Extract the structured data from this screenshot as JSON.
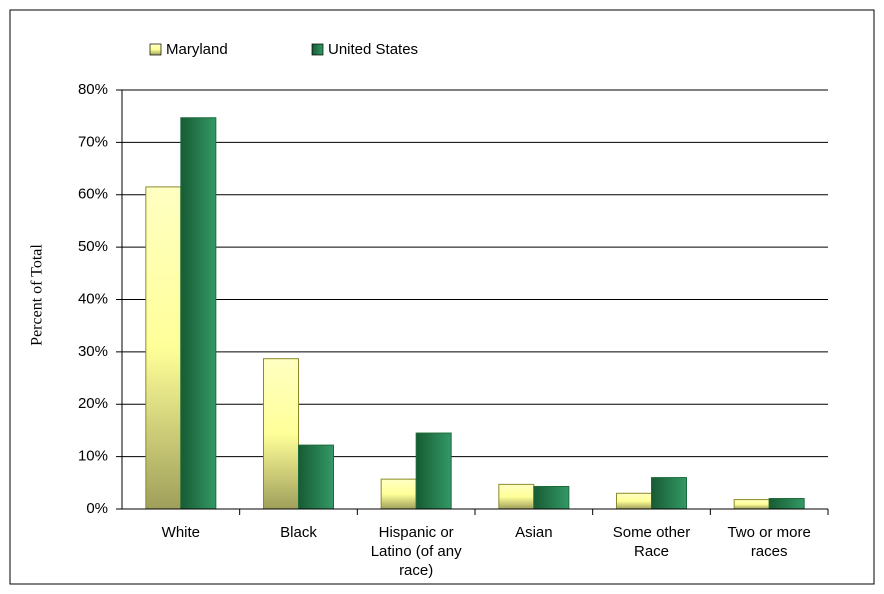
{
  "chart_data": {
    "type": "bar",
    "y_title": "Percent of Total",
    "categories": [
      "White",
      "Black",
      "Hispanic or Latino (of any race)",
      "Asian",
      "Some other Race",
      "Two or more races"
    ],
    "series": [
      {
        "name": "Maryland",
        "color": "#ffff99",
        "values": [
          61.5,
          28.7,
          5.7,
          4.7,
          3.0,
          1.8
        ]
      },
      {
        "name": "United States",
        "color": "#339966",
        "values": [
          74.7,
          12.2,
          14.5,
          4.3,
          6.0,
          2.0
        ]
      }
    ],
    "ylim": [
      0,
      80
    ],
    "yticks": [
      {
        "value": 0,
        "label": "0%"
      },
      {
        "value": 10,
        "label": "10%"
      },
      {
        "value": 20,
        "label": "20%"
      },
      {
        "value": 30,
        "label": "30%"
      },
      {
        "value": 40,
        "label": "40%"
      },
      {
        "value": 50,
        "label": "50%"
      },
      {
        "value": 60,
        "label": "60%"
      },
      {
        "value": 70,
        "label": "70%"
      },
      {
        "value": 80,
        "label": "80%"
      }
    ],
    "grid": true
  }
}
